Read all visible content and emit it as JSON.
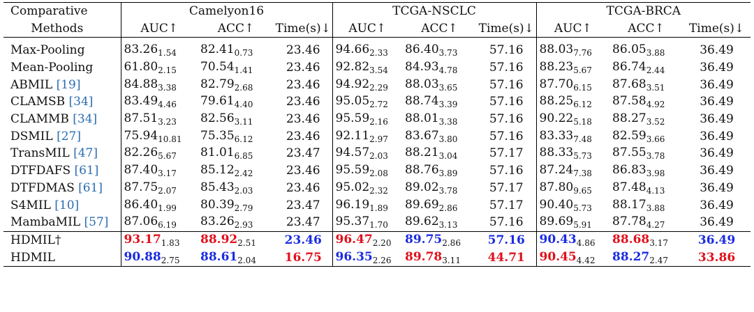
{
  "table": {
    "header": {
      "method_line1": "Comparative",
      "method_line2": "Methods",
      "groups": [
        "Camelyon16",
        "TCGA-NSCLC",
        "TCGA-BRCA"
      ],
      "metrics": [
        "AUC↑",
        "ACC↑",
        "Time(s)↓"
      ]
    },
    "rows": [
      {
        "name": "Max-Pooling",
        "ref": "",
        "cells": [
          [
            "83.26",
            "1.54"
          ],
          [
            "82.41",
            "0.73"
          ],
          [
            "23.46",
            ""
          ],
          [
            "94.66",
            "2.33"
          ],
          [
            "86.40",
            "3.73"
          ],
          [
            "57.16",
            ""
          ],
          [
            "88.03",
            "7.76"
          ],
          [
            "86.05",
            "3.88"
          ],
          [
            "36.49",
            ""
          ]
        ]
      },
      {
        "name": "Mean-Pooling",
        "ref": "",
        "cells": [
          [
            "61.80",
            "2.15"
          ],
          [
            "70.54",
            "1.41"
          ],
          [
            "23.46",
            ""
          ],
          [
            "92.82",
            "3.54"
          ],
          [
            "84.93",
            "4.78"
          ],
          [
            "57.16",
            ""
          ],
          [
            "88.23",
            "5.67"
          ],
          [
            "86.74",
            "2.44"
          ],
          [
            "36.49",
            ""
          ]
        ]
      },
      {
        "name": "ABMIL ",
        "ref": "[19]",
        "cells": [
          [
            "84.88",
            "3.38"
          ],
          [
            "82.79",
            "2.68"
          ],
          [
            "23.46",
            ""
          ],
          [
            "94.92",
            "2.29"
          ],
          [
            "88.03",
            "3.65"
          ],
          [
            "57.16",
            ""
          ],
          [
            "87.70",
            "6.15"
          ],
          [
            "87.68",
            "3.51"
          ],
          [
            "36.49",
            ""
          ]
        ]
      },
      {
        "name": "CLAMSB ",
        "ref": "[34]",
        "cells": [
          [
            "83.49",
            "4.46"
          ],
          [
            "79.61",
            "4.40"
          ],
          [
            "23.46",
            ""
          ],
          [
            "95.05",
            "2.72"
          ],
          [
            "88.74",
            "3.39"
          ],
          [
            "57.16",
            ""
          ],
          [
            "88.25",
            "6.12"
          ],
          [
            "87.58",
            "4.92"
          ],
          [
            "36.49",
            ""
          ]
        ]
      },
      {
        "name": "CLAMMB ",
        "ref": "[34]",
        "cells": [
          [
            "87.51",
            "3.23"
          ],
          [
            "82.56",
            "3.11"
          ],
          [
            "23.46",
            ""
          ],
          [
            "95.59",
            "2.16"
          ],
          [
            "88.01",
            "3.38"
          ],
          [
            "57.16",
            ""
          ],
          [
            "90.22",
            "5.18"
          ],
          [
            "88.27",
            "3.52"
          ],
          [
            "36.49",
            ""
          ]
        ]
      },
      {
        "name": "DSMIL ",
        "ref": "[27]",
        "cells": [
          [
            "75.94",
            "10.81"
          ],
          [
            "75.35",
            "6.12"
          ],
          [
            "23.46",
            ""
          ],
          [
            "92.11",
            "2.97"
          ],
          [
            "83.67",
            "3.80"
          ],
          [
            "57.16",
            ""
          ],
          [
            "83.33",
            "7.48"
          ],
          [
            "82.59",
            "3.66"
          ],
          [
            "36.49",
            ""
          ]
        ]
      },
      {
        "name": "TransMIL ",
        "ref": "[47]",
        "cells": [
          [
            "82.26",
            "5.67"
          ],
          [
            "81.01",
            "6.85"
          ],
          [
            "23.47",
            ""
          ],
          [
            "94.57",
            "2.03"
          ],
          [
            "88.21",
            "3.04"
          ],
          [
            "57.17",
            ""
          ],
          [
            "88.33",
            "5.73"
          ],
          [
            "87.55",
            "3.78"
          ],
          [
            "36.49",
            ""
          ]
        ]
      },
      {
        "name": "DTFDAFS ",
        "ref": "[61]",
        "cells": [
          [
            "87.40",
            "3.17"
          ],
          [
            "85.12",
            "2.42"
          ],
          [
            "23.46",
            ""
          ],
          [
            "95.59",
            "2.08"
          ],
          [
            "88.76",
            "3.89"
          ],
          [
            "57.16",
            ""
          ],
          [
            "87.24",
            "7.38"
          ],
          [
            "86.83",
            "3.98"
          ],
          [
            "36.49",
            ""
          ]
        ]
      },
      {
        "name": "DTFDMAS ",
        "ref": "[61]",
        "cells": [
          [
            "87.75",
            "2.07"
          ],
          [
            "85.43",
            "2.03"
          ],
          [
            "23.46",
            ""
          ],
          [
            "95.02",
            "2.32"
          ],
          [
            "89.02",
            "3.78"
          ],
          [
            "57.17",
            ""
          ],
          [
            "87.80",
            "9.65"
          ],
          [
            "87.48",
            "4.13"
          ],
          [
            "36.49",
            ""
          ]
        ]
      },
      {
        "name": "S4MIL ",
        "ref": "[10]",
        "cells": [
          [
            "86.40",
            "1.99"
          ],
          [
            "80.39",
            "2.79"
          ],
          [
            "23.47",
            ""
          ],
          [
            "96.19",
            "1.89"
          ],
          [
            "89.69",
            "2.86"
          ],
          [
            "57.17",
            ""
          ],
          [
            "90.40",
            "5.73"
          ],
          [
            "88.17",
            "3.88"
          ],
          [
            "36.49",
            ""
          ]
        ]
      },
      {
        "name": "MambaMIL ",
        "ref": "[57]",
        "cells": [
          [
            "87.06",
            "6.19"
          ],
          [
            "83.26",
            "2.93"
          ],
          [
            "23.47",
            ""
          ],
          [
            "95.37",
            "1.70"
          ],
          [
            "89.62",
            "3.13"
          ],
          [
            "57.16",
            ""
          ],
          [
            "89.69",
            "5.91"
          ],
          [
            "87.78",
            "4.27"
          ],
          [
            "36.49",
            ""
          ]
        ]
      }
    ],
    "ours": [
      {
        "name": "HDMIL†",
        "cells": [
          [
            "93.17",
            "1.83",
            "best"
          ],
          [
            "88.92",
            "2.51",
            "best"
          ],
          [
            "23.46",
            "",
            "second"
          ],
          [
            "96.47",
            "2.20",
            "best"
          ],
          [
            "89.75",
            "2.86",
            "second"
          ],
          [
            "57.16",
            "",
            "second"
          ],
          [
            "90.43",
            "4.86",
            "second"
          ],
          [
            "88.68",
            "3.17",
            "best"
          ],
          [
            "36.49",
            "",
            "second"
          ]
        ]
      },
      {
        "name": "HDMIL",
        "cells": [
          [
            "90.88",
            "2.75",
            "second"
          ],
          [
            "88.61",
            "2.04",
            "second"
          ],
          [
            "16.75",
            "",
            "best"
          ],
          [
            "96.35",
            "2.26",
            "second"
          ],
          [
            "89.78",
            "3.11",
            "best"
          ],
          [
            "44.71",
            "",
            "best"
          ],
          [
            "90.45",
            "4.42",
            "best"
          ],
          [
            "88.27",
            "2.47",
            "second"
          ],
          [
            "33.86",
            "",
            "best"
          ]
        ]
      }
    ]
  },
  "colors": {
    "best": "#e0101a",
    "second": "#1a2ce0",
    "citation": "#2b6cb0"
  }
}
